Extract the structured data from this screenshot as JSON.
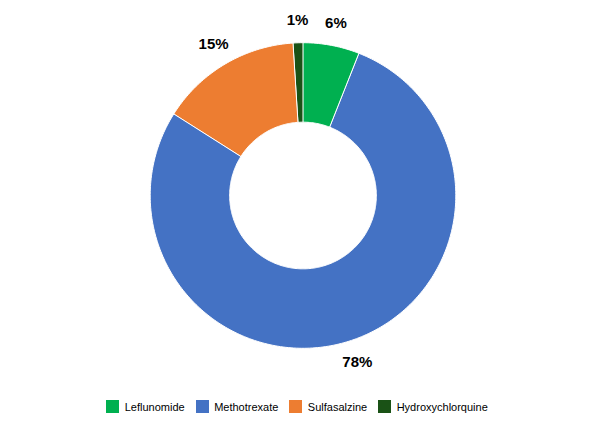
{
  "chart_data": {
    "type": "pie",
    "categories": [
      "Leflunomide",
      "Methotrexate",
      "Sulfasalzine",
      "Hydroxychlorquine"
    ],
    "values": [
      6,
      78,
      15,
      1
    ],
    "value_labels": [
      "6%",
      "78%",
      "15%",
      "1%"
    ],
    "colors": [
      "#00b050",
      "#4472c4",
      "#ed7d31",
      "#1a5216"
    ],
    "data_labels": true,
    "legend": "bottom"
  }
}
